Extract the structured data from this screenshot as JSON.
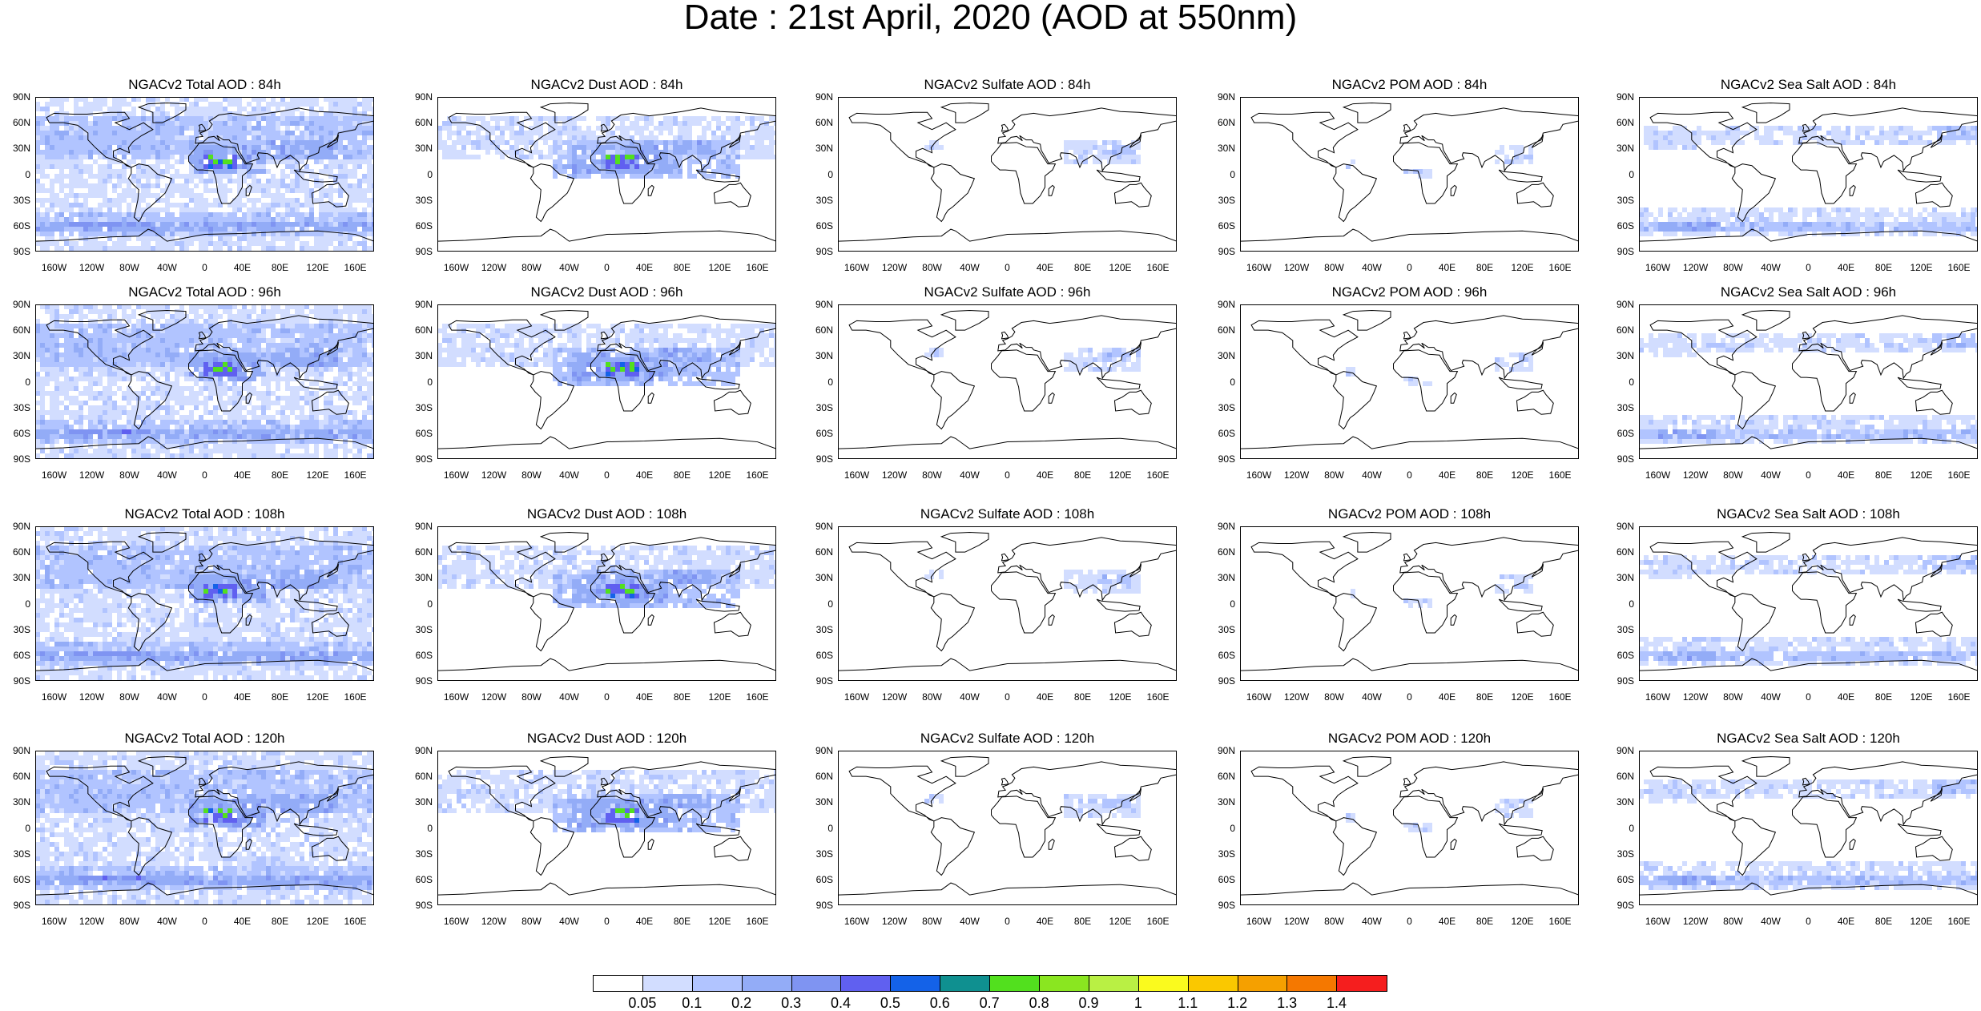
{
  "title": "Date : 21st April, 2020 (AOD at 550nm)",
  "panels": [
    [
      "NGACv2 Total AOD : 84h",
      "NGACv2 Dust AOD : 84h",
      "NGACv2 Sulfate AOD : 84h",
      "NGACv2 POM AOD : 84h",
      "NGACv2 Sea Salt AOD : 84h"
    ],
    [
      "NGACv2 Total AOD : 96h",
      "NGACv2 Dust AOD : 96h",
      "NGACv2 Sulfate AOD : 96h",
      "NGACv2 POM AOD : 96h",
      "NGACv2 Sea Salt AOD : 96h"
    ],
    [
      "NGACv2 Total AOD : 108h",
      "NGACv2 Dust AOD : 108h",
      "NGACv2 Sulfate AOD : 108h",
      "NGACv2 POM AOD : 108h",
      "NGACv2 Sea Salt AOD : 108h"
    ],
    [
      "NGACv2 Total AOD : 120h",
      "NGACv2 Dust AOD : 120h",
      "NGACv2 Sulfate AOD : 120h",
      "NGACv2 POM AOD : 120h",
      "NGACv2 Sea Salt  AOD : 120h"
    ]
  ],
  "lat_ticks": [
    "90N",
    "60N",
    "30N",
    "0",
    "30S",
    "60S",
    "90S"
  ],
  "lon_ticks": [
    "160W",
    "120W",
    "80W",
    "40W",
    "0",
    "40E",
    "80E",
    "120E",
    "160E"
  ],
  "colorbar": {
    "labels": [
      "0.05",
      "0.1",
      "0.2",
      "0.3",
      "0.4",
      "0.5",
      "0.6",
      "0.7",
      "0.8",
      "0.9",
      "1",
      "1.1",
      "1.2",
      "1.3",
      "1.4"
    ],
    "colors": [
      "#ffffff",
      "#d2ddff",
      "#b1c4ff",
      "#93acf7",
      "#7f94f2",
      "#6060f0",
      "#1462e8",
      "#0f9090",
      "#52e01e",
      "#8ae620",
      "#b9f044",
      "#fafa1e",
      "#fac800",
      "#f5a000",
      "#f57800",
      "#f51e1e"
    ]
  }
}
